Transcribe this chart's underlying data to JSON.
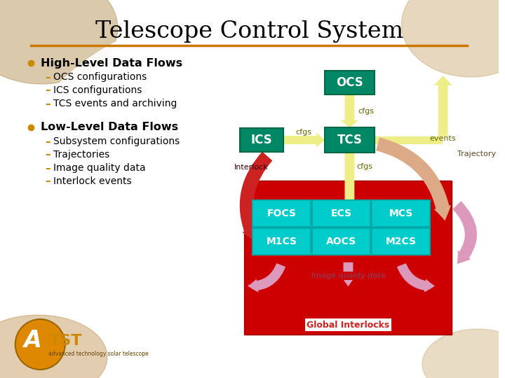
{
  "title": "Telescope Control System",
  "title_fontsize": 24,
  "title_color": "#000000",
  "orange_line_color": "#CC7700",
  "bg_color": "#FFFFFF",
  "bullet1": "High-Level Data Flows",
  "sub1": [
    "OCS configurations",
    "ICS configurations",
    "TCS events and archiving"
  ],
  "bullet2": "Low-Level Data Flows",
  "sub2": [
    "Subsystem configurations",
    "Trajectories",
    "Image quality data",
    "Interlock events"
  ],
  "ocs_color": "#008866",
  "tcs_color": "#008866",
  "ics_color": "#008866",
  "subsys_color": "#00CCCC",
  "red_bg": "#CC0000",
  "cfgs_bg": "#EEEEAA",
  "cfgs_border": "#AAAA44",
  "events_arrow_color": "#EEEE99",
  "trajectory_arrow_color": "#DDAA88",
  "cfgs_arrow_color": "#EEEE88",
  "interlock_arrow_color": "#CC2222",
  "imagequality_arrow_color": "#DD99BB",
  "dash_color": "#CC8800",
  "bullet_color": "#CC8800",
  "sub_dash_color": "#CC8800"
}
